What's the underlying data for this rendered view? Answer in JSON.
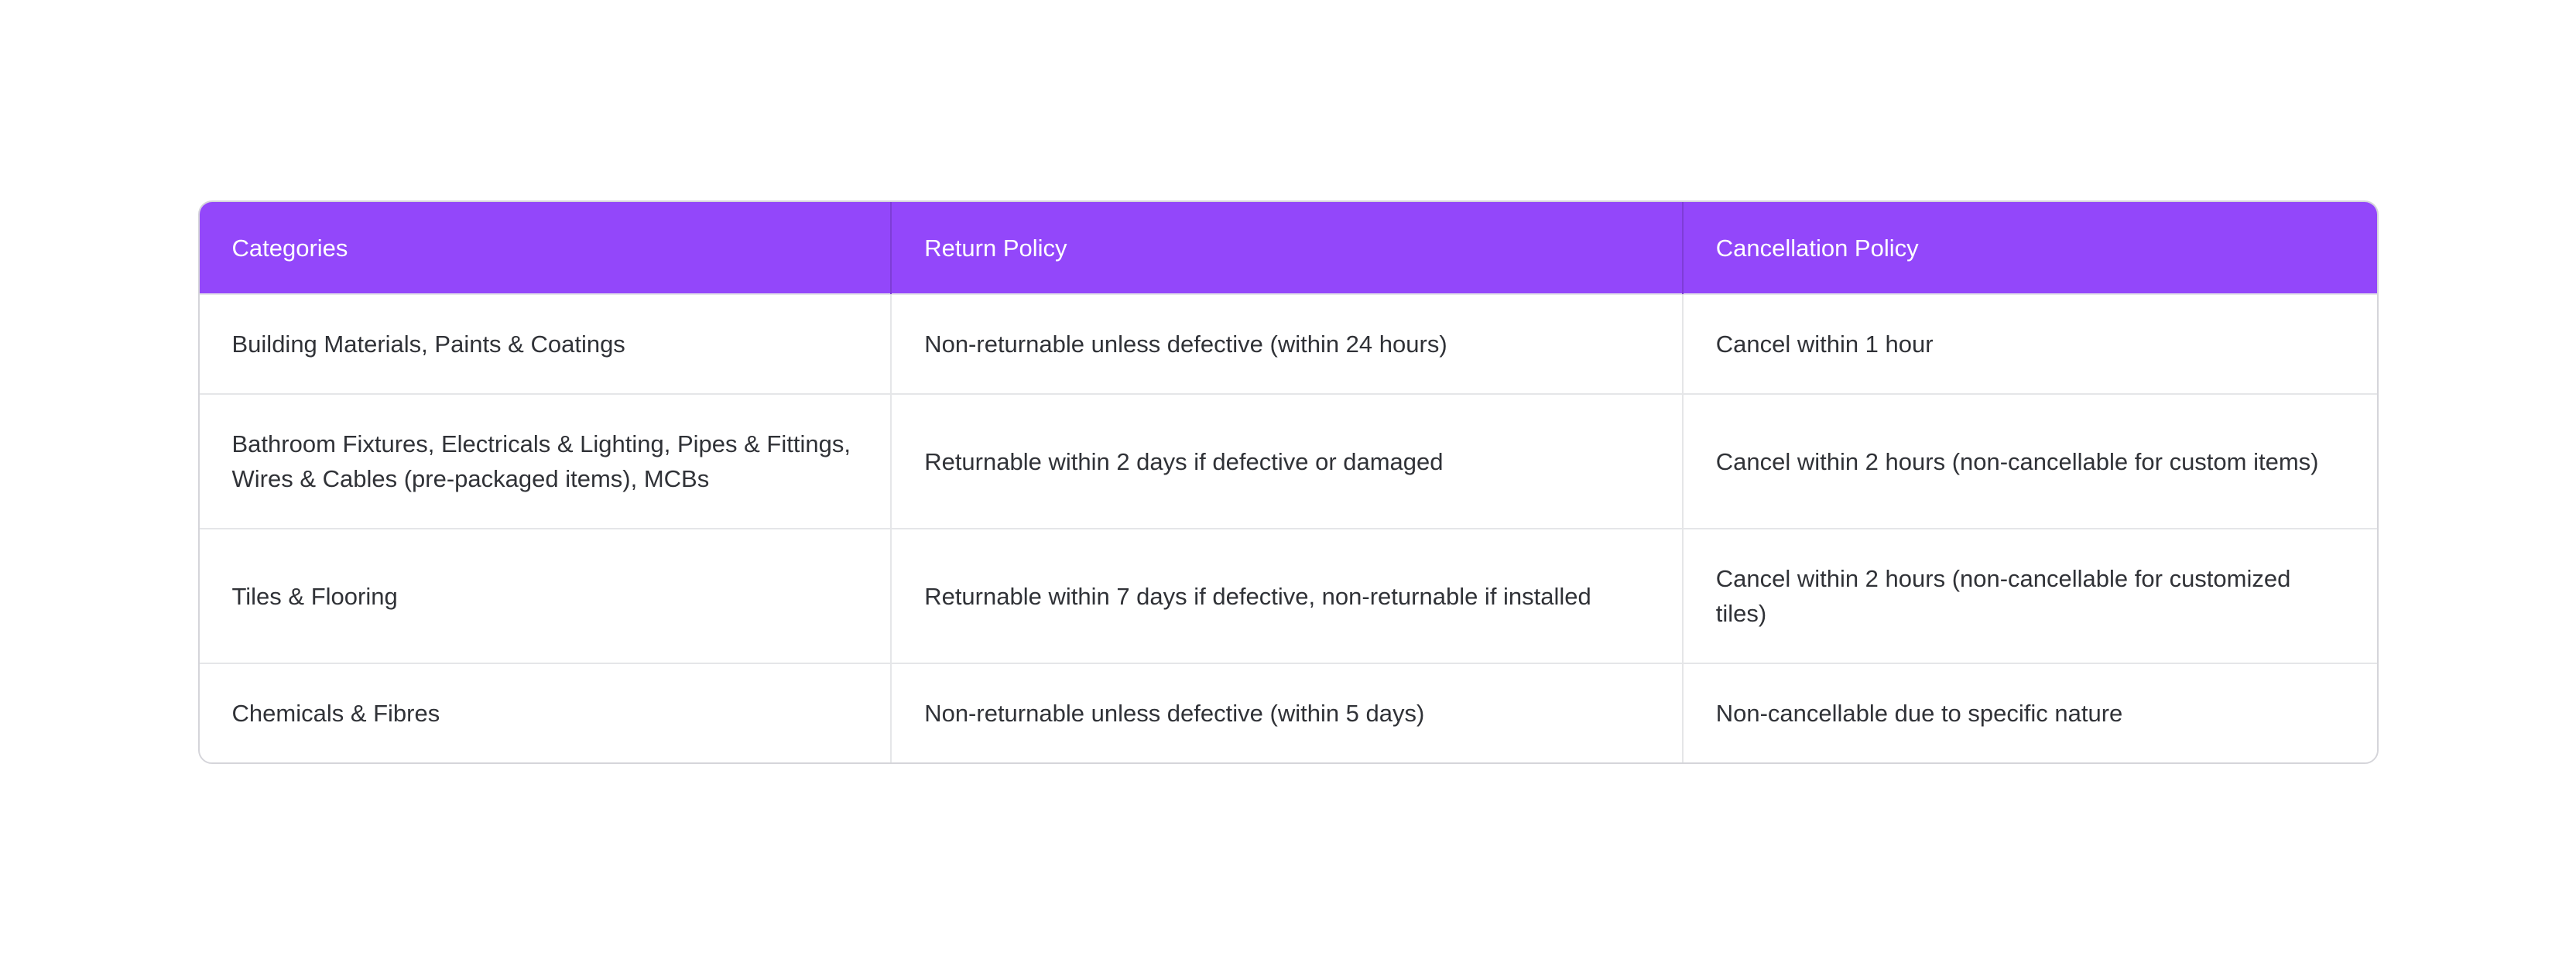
{
  "table": {
    "headers": [
      "Categories",
      "Return Policy",
      "Cancellation Policy"
    ],
    "rows": [
      [
        "Building Materials, Paints & Coatings",
        "Non-returnable unless defective (within 24 hours)",
        "Cancel within 1 hour"
      ],
      [
        "Bathroom Fixtures, Electricals & Lighting, Pipes & Fittings, Wires & Cables (pre-packaged items), MCBs",
        "Returnable within 2 days if defective or damaged",
        "Cancel within 2 hours (non-cancellable for custom items)"
      ],
      [
        "Tiles & Flooring",
        "Returnable within 7 days if defective, non-returnable if installed",
        "Cancel within 2 hours (non-cancellable for customized tiles)"
      ],
      [
        "Chemicals & Fibres",
        "Non-returnable unless defective (within 5 days)",
        "Non-cancellable due to specific nature"
      ]
    ]
  },
  "colors": {
    "page_bg": "#FFFFFF",
    "header_bg": "#9347FA",
    "header_text": "#FFFFFF",
    "body_text": "#303237",
    "border_outer": "#D5D5DA",
    "border_inner": "#E5E6E8",
    "header_divider": "rgba(0,0,0,0.14)"
  }
}
